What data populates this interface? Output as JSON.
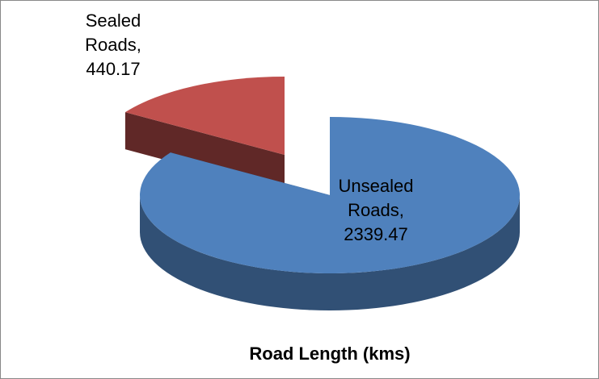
{
  "chart_data": {
    "type": "pie",
    "title": "Road Length (kms)",
    "categories": [
      "Unsealed Roads",
      "Sealed Roads"
    ],
    "values": [
      2339.47,
      440.17
    ],
    "value_labels": [
      "Unsealed Roads, 2339.47",
      "Sealed Roads, 440.17"
    ],
    "colors": [
      "#4f81bd",
      "#c0504d"
    ]
  }
}
